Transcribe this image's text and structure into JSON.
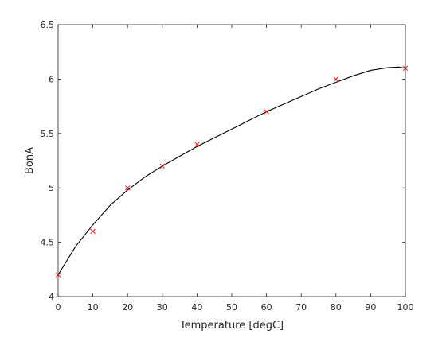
{
  "chart_data": {
    "type": "scatter",
    "title": "",
    "xlabel": "Temperature [degC]",
    "ylabel": "BonA",
    "xlim": [
      0,
      100
    ],
    "ylim": [
      4,
      6.5
    ],
    "x_ticks": [
      0,
      10,
      20,
      30,
      40,
      50,
      60,
      70,
      80,
      90,
      100
    ],
    "y_ticks": [
      4,
      4.5,
      5,
      5.5,
      6,
      6.5
    ],
    "grid": false,
    "box": true,
    "series": [
      {
        "kind": "markers",
        "marker": "x",
        "color": "#ff0000",
        "x": [
          0,
          10,
          20,
          30,
          40,
          60,
          80,
          100
        ],
        "y": [
          4.2,
          4.6,
          5.0,
          5.2,
          5.4,
          5.7,
          6.0,
          6.1
        ]
      },
      {
        "kind": "line",
        "color": "#000000",
        "x": [
          0,
          5,
          10,
          15,
          20,
          25,
          30,
          35,
          40,
          45,
          50,
          55,
          60,
          65,
          70,
          75,
          80,
          85,
          90,
          95,
          98,
          100
        ],
        "y": [
          4.2,
          4.46,
          4.66,
          4.84,
          4.98,
          5.1,
          5.2,
          5.29,
          5.38,
          5.46,
          5.54,
          5.62,
          5.7,
          5.77,
          5.84,
          5.91,
          5.97,
          6.03,
          6.08,
          6.105,
          6.11,
          6.1
        ]
      }
    ]
  }
}
